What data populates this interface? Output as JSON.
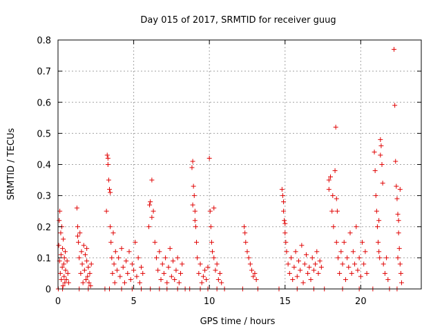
{
  "chart_data": {
    "type": "scatter",
    "title": "Day 015 of 2017, SRMTID for receiver guug",
    "xlabel": "GPS time / hours",
    "ylabel": "SRMTID / TECUs",
    "xlim": [
      0,
      24
    ],
    "ylim": [
      0,
      0.8
    ],
    "xticks": [
      0,
      5,
      10,
      15,
      20
    ],
    "yticks": [
      0,
      0.1,
      0.2,
      0.3,
      0.4,
      0.5,
      0.6,
      0.7,
      0.8
    ],
    "xtick_labels": [
      "0",
      "5",
      "10",
      "15",
      "20"
    ],
    "ytick_labels": [
      "0",
      "0.1",
      "0.2",
      "0.3",
      "0.4",
      "0.5",
      "0.6",
      "0.7",
      "0.8"
    ],
    "grid": true,
    "legend": "none",
    "marker": "plus",
    "color": "#e00000",
    "series": [
      {
        "x": [
          0.05,
          0.08,
          0.1,
          0.12,
          0.15,
          0.18,
          0.2,
          0.22,
          0.25,
          0.28,
          0.3,
          0.33,
          0.35,
          0.38,
          0.4,
          0.42,
          0.45,
          0.48,
          0.5,
          0.55,
          0.6,
          0.65,
          0.7,
          1.25,
          1.3,
          1.35,
          1.4,
          1.45,
          1.5,
          1.55,
          1.6,
          1.65,
          1.7,
          1.75,
          1.8,
          1.85,
          1.9,
          1.95,
          2.0,
          2.05,
          2.1,
          2.15,
          2.2,
          3.2,
          3.25,
          3.3,
          3.35,
          3.4,
          3.45,
          3.5,
          3.55,
          3.6,
          3.65,
          3.7,
          3.75,
          3.8,
          3.9,
          4.0,
          4.1,
          4.2,
          4.3,
          4.4,
          4.5,
          4.6,
          4.7,
          4.8,
          4.9,
          5.0,
          5.1,
          5.2,
          5.3,
          5.4,
          5.5,
          5.6,
          6.0,
          6.1,
          6.2,
          6.3,
          6.4,
          6.5,
          6.6,
          6.7,
          6.8,
          6.9,
          7.0,
          7.1,
          7.2,
          7.3,
          7.4,
          7.5,
          7.6,
          7.7,
          7.8,
          7.9,
          8.0,
          8.1,
          8.2,
          8.85,
          8.9,
          8.95,
          9.0,
          9.05,
          9.1,
          9.15,
          9.2,
          9.3,
          9.4,
          9.5,
          9.6,
          9.7,
          9.8,
          9.9,
          10.0,
          10.05,
          10.1,
          10.15,
          10.2,
          10.3,
          10.4,
          10.5,
          10.6,
          10.7,
          10.8,
          12.3,
          12.35,
          12.4,
          12.5,
          12.6,
          12.7,
          12.8,
          12.9,
          13.0,
          13.1,
          14.8,
          14.85,
          14.9,
          14.95,
          15.0,
          15.05,
          15.1,
          15.2,
          15.3,
          15.4,
          15.5,
          15.6,
          15.7,
          15.8,
          15.9,
          16.0,
          16.1,
          16.2,
          16.3,
          16.4,
          16.5,
          16.6,
          16.7,
          16.8,
          16.9,
          17.0,
          17.1,
          17.2,
          17.3,
          17.4,
          17.9,
          18.0,
          18.1,
          18.15,
          18.2,
          18.3,
          18.35,
          18.4,
          18.5,
          18.6,
          18.7,
          18.8,
          18.9,
          19.0,
          19.1,
          19.2,
          19.3,
          19.4,
          19.5,
          19.6,
          19.7,
          19.8,
          19.9,
          20.0,
          20.1,
          20.2,
          20.3,
          20.4,
          20.9,
          20.95,
          21.0,
          21.05,
          21.1,
          21.15,
          21.2,
          21.25,
          21.3,
          21.35,
          21.4,
          21.45,
          21.5,
          21.6,
          21.7,
          21.8,
          22.2,
          22.25,
          22.3,
          22.35,
          22.4,
          22.45,
          22.5,
          22.55,
          22.6,
          22.65,
          22.7,
          0.02,
          0.3,
          1.4,
          2.0,
          3.1,
          3.4,
          4.2,
          4.9,
          5.5,
          6.1,
          6.7,
          7.2,
          7.9,
          8.4,
          8.7,
          9.4,
          9.9,
          10.5,
          11.0,
          12.2,
          13.2,
          14.6,
          15.8,
          16.9,
          17.6,
          18.8,
          19.9,
          20.8,
          21.9,
          22.4,
          1.3,
          1.9,
          3.3,
          3.45,
          6.05,
          6.2,
          8.9,
          9.05,
          10.3,
          14.9,
          15.0,
          17.9,
          18.4,
          18.45,
          21.2,
          21.3,
          22.45,
          22.5,
          22.6
        ],
        "y": [
          0.14,
          0.22,
          0.09,
          0.25,
          0.05,
          0.18,
          0.11,
          0.03,
          0.2,
          0.07,
          0.13,
          0.01,
          0.16,
          0.08,
          0.04,
          0.1,
          0.02,
          0.12,
          0.06,
          0.03,
          0.09,
          0.05,
          0.02,
          0.26,
          0.2,
          0.15,
          0.1,
          0.18,
          0.05,
          0.12,
          0.08,
          0.02,
          0.14,
          0.06,
          0.11,
          0.03,
          0.09,
          0.04,
          0.07,
          0.02,
          0.05,
          0.01,
          0.08,
          0.25,
          0.43,
          0.4,
          0.35,
          0.32,
          0.2,
          0.15,
          0.1,
          0.05,
          0.18,
          0.08,
          0.02,
          0.12,
          0.06,
          0.1,
          0.04,
          0.13,
          0.07,
          0.02,
          0.09,
          0.05,
          0.12,
          0.03,
          0.08,
          0.06,
          0.15,
          0.04,
          0.1,
          0.02,
          0.07,
          0.05,
          0.2,
          0.28,
          0.35,
          0.25,
          0.15,
          0.1,
          0.06,
          0.12,
          0.03,
          0.08,
          0.05,
          0.1,
          0.02,
          0.07,
          0.13,
          0.04,
          0.09,
          0.03,
          0.06,
          0.1,
          0.02,
          0.05,
          0.08,
          0.39,
          0.41,
          0.33,
          0.3,
          0.25,
          0.2,
          0.15,
          0.1,
          0.05,
          0.08,
          0.02,
          0.04,
          0.06,
          0.03,
          0.07,
          0.42,
          0.25,
          0.2,
          0.15,
          0.12,
          0.1,
          0.06,
          0.08,
          0.03,
          0.05,
          0.02,
          0.2,
          0.18,
          0.15,
          0.12,
          0.1,
          0.08,
          0.06,
          0.04,
          0.05,
          0.03,
          0.32,
          0.3,
          0.25,
          0.22,
          0.18,
          0.15,
          0.12,
          0.08,
          0.05,
          0.1,
          0.03,
          0.07,
          0.12,
          0.04,
          0.09,
          0.06,
          0.14,
          0.02,
          0.08,
          0.11,
          0.05,
          0.07,
          0.03,
          0.1,
          0.06,
          0.08,
          0.12,
          0.05,
          0.09,
          0.07,
          0.35,
          0.36,
          0.25,
          0.3,
          0.2,
          0.38,
          0.52,
          0.15,
          0.1,
          0.05,
          0.12,
          0.08,
          0.15,
          0.03,
          0.1,
          0.07,
          0.18,
          0.05,
          0.12,
          0.08,
          0.2,
          0.06,
          0.1,
          0.04,
          0.15,
          0.08,
          0.12,
          0.05,
          0.44,
          0.38,
          0.3,
          0.25,
          0.2,
          0.15,
          0.12,
          0.1,
          0.48,
          0.46,
          0.4,
          0.34,
          0.08,
          0.05,
          0.1,
          0.03,
          0.77,
          0.59,
          0.41,
          0.33,
          0.29,
          0.24,
          0.18,
          0.13,
          0.08,
          0.05,
          0.02,
          0.0,
          0.0,
          0.0,
          0.0,
          0.0,
          0.0,
          0.0,
          0.0,
          0.0,
          0.0,
          0.0,
          0.0,
          0.0,
          0.0,
          0.0,
          0.0,
          0.0,
          0.0,
          0.0,
          0.0,
          0.0,
          0.0,
          0.0,
          0.0,
          0.0,
          0.0,
          0.0,
          0.0,
          0.0,
          0.0,
          0.17,
          0.13,
          0.42,
          0.31,
          0.27,
          0.23,
          0.27,
          0.22,
          0.26,
          0.28,
          0.21,
          0.32,
          0.29,
          0.25,
          0.22,
          0.43,
          0.1,
          0.22,
          0.32
        ]
      }
    ]
  }
}
